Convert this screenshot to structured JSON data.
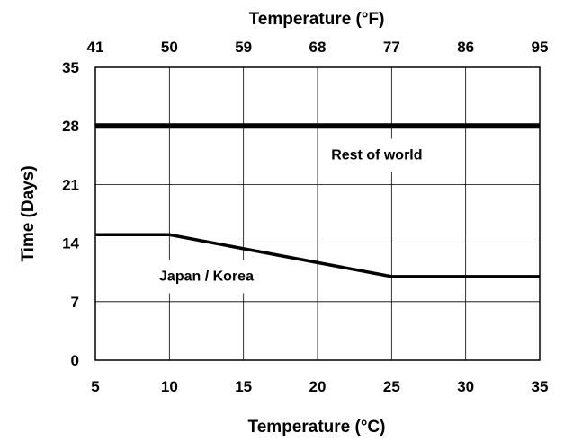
{
  "chart_data": {
    "type": "line",
    "xlabel": "Temperature (°C)",
    "x2label": "Temperature (°F)",
    "ylabel": "Time (Days)",
    "xlim": [
      5,
      35
    ],
    "ylim": [
      0,
      35
    ],
    "xticks": [
      5,
      10,
      15,
      20,
      25,
      30,
      35
    ],
    "x2ticks": [
      41,
      50,
      59,
      68,
      77,
      86,
      95
    ],
    "yticks": [
      0,
      7,
      14,
      21,
      28,
      35
    ],
    "grid": true,
    "series": [
      {
        "name": "Rest of world",
        "x": [
          5,
          35
        ],
        "y": [
          28,
          28
        ],
        "line_width": "thick"
      },
      {
        "name": "Japan / Korea",
        "x": [
          5,
          10,
          25,
          35
        ],
        "y": [
          15,
          15,
          10,
          10
        ],
        "line_width": "medium"
      }
    ],
    "annotations": [
      {
        "text": "Rest of world",
        "x": 24,
        "y": 24
      },
      {
        "text": "Japan / Korea",
        "x": 12.5,
        "y": 9.5
      }
    ]
  }
}
